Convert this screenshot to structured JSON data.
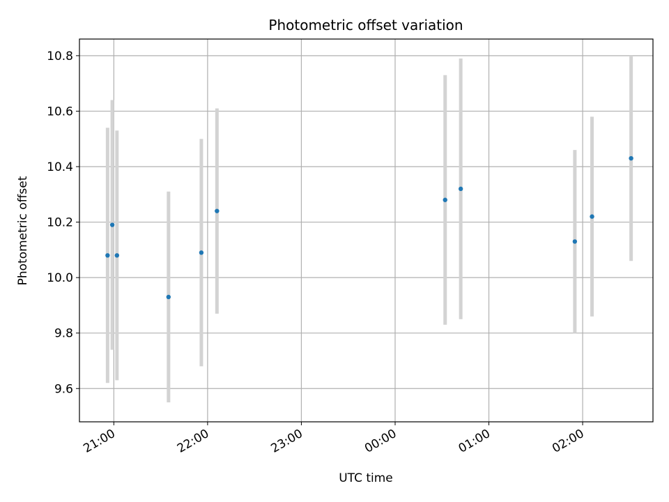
{
  "chart_data": {
    "type": "scatter",
    "title": "Photometric offset variation",
    "xlabel": "UTC time",
    "ylabel": "Photometric offset",
    "x_ticks": [
      "21:00",
      "22:00",
      "23:00",
      "00:00",
      "01:00",
      "02:00"
    ],
    "y_ticks": [
      "9.6",
      "9.8",
      "10.0",
      "10.2",
      "10.4",
      "10.6",
      "10.8"
    ],
    "xlim": [
      "20:38",
      "02:45"
    ],
    "ylim": [
      9.48,
      10.86
    ],
    "grid": true,
    "legend": "none",
    "colors": {
      "point": "#1f77b4",
      "errorbar": "#d3d3d3"
    },
    "points": [
      {
        "time": "20:56",
        "y": 10.08,
        "err": 0.46
      },
      {
        "time": "20:59",
        "y": 10.19,
        "err": 0.45
      },
      {
        "time": "21:02",
        "y": 10.08,
        "err": 0.45
      },
      {
        "time": "21:35",
        "y": 9.93,
        "err": 0.38
      },
      {
        "time": "21:56",
        "y": 10.09,
        "err": 0.41
      },
      {
        "time": "22:06",
        "y": 10.24,
        "err": 0.37
      },
      {
        "time": "00:32",
        "y": 10.28,
        "err": 0.45
      },
      {
        "time": "00:42",
        "y": 10.32,
        "err": 0.47
      },
      {
        "time": "01:55",
        "y": 10.13,
        "err": 0.33
      },
      {
        "time": "02:06",
        "y": 10.22,
        "err": 0.36
      },
      {
        "time": "02:31",
        "y": 10.43,
        "err": 0.37
      }
    ]
  }
}
